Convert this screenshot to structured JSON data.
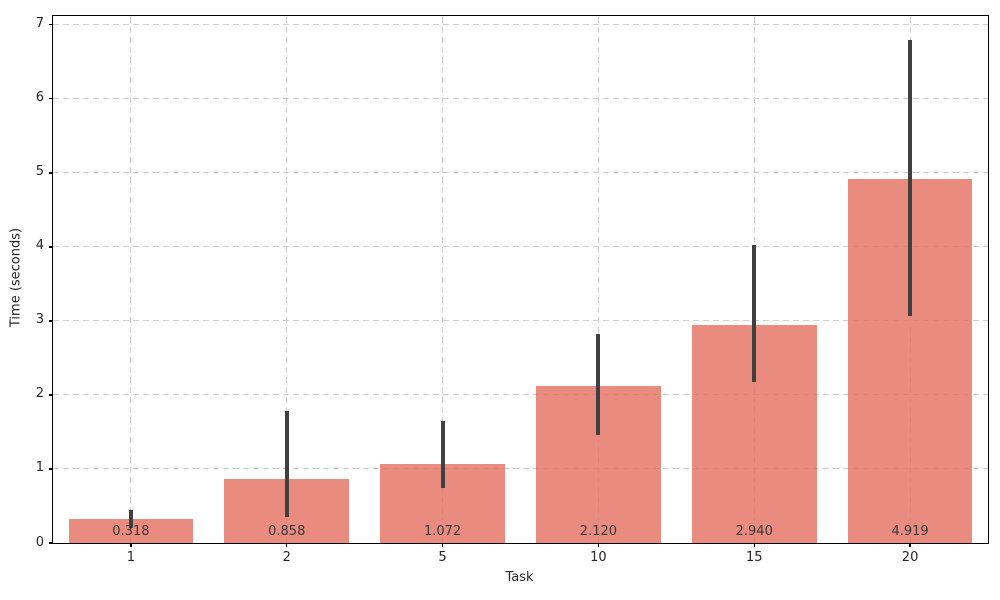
{
  "figure": {
    "background": "#ffffff"
  },
  "chart_data": {
    "type": "bar",
    "title": "",
    "xlabel": "Task",
    "ylabel": "Time (seconds)",
    "categories": [
      "1",
      "2",
      "5",
      "10",
      "15",
      "20"
    ],
    "values": [
      0.318,
      0.858,
      1.072,
      2.12,
      2.94,
      4.919
    ],
    "bar_labels": [
      "0.318",
      "0.858",
      "1.072",
      "2.120",
      "2.940",
      "4.919"
    ],
    "error_low": [
      0.2,
      0.35,
      0.74,
      1.46,
      2.18,
      3.07
    ],
    "error_high": [
      0.44,
      1.78,
      1.65,
      2.82,
      4.02,
      6.8
    ],
    "yticks": [
      0,
      1,
      2,
      3,
      4,
      5,
      6,
      7
    ],
    "ylim": [
      0,
      7.12
    ],
    "grid": "both, dashed, light-gray, behind bars (bars semi-transparent)",
    "legend_position": "none",
    "colors": {
      "bar_fill": "#e57769",
      "bar_alpha": 0.85,
      "bar_composite_on_white": "#e98b7f",
      "error_bar": "#404040",
      "grid": "#cfcfcf",
      "axis_frame": "#000000",
      "tick_label": "#262626",
      "value_label": "#3a3a3a"
    }
  }
}
